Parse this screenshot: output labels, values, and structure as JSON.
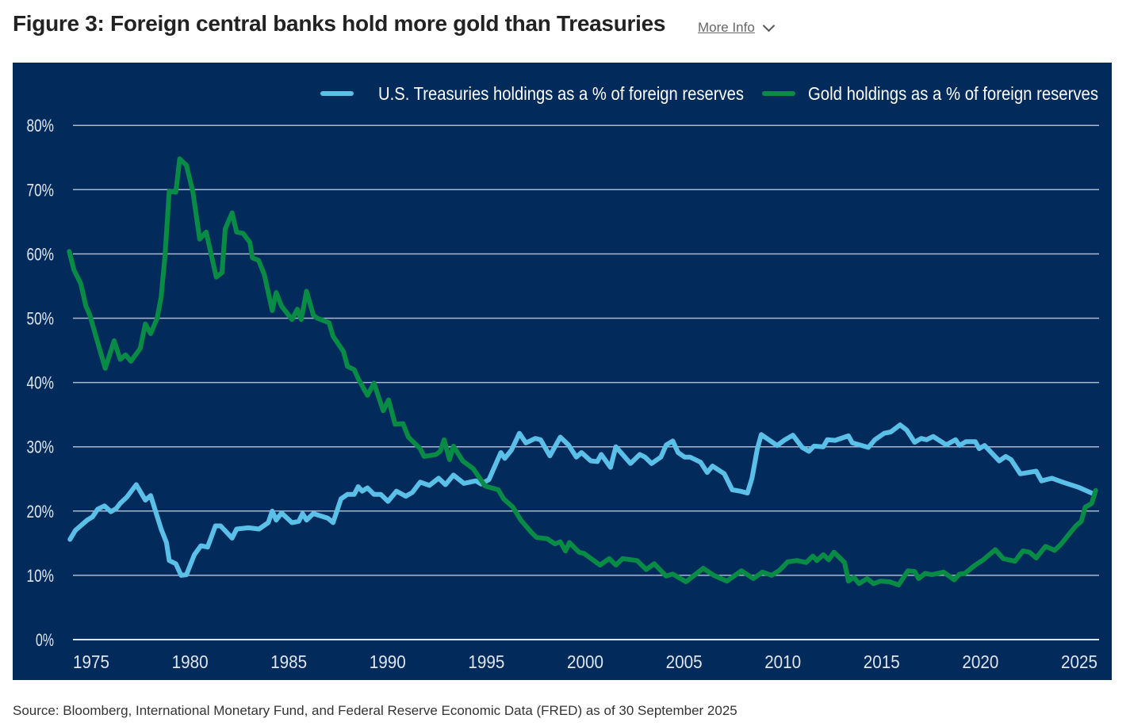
{
  "header": {
    "title": "Figure 3: Foreign central banks hold more gold than Treasuries",
    "more_info": "More Info",
    "chevron_icon": "chevron-down-icon"
  },
  "source": "Source: Bloomberg, International Monetary Fund, and Federal Reserve Economic Data (FRED) as of 30 September 2025",
  "colors": {
    "background": "#022b5c",
    "treasuries": "#5bc0e8",
    "gold": "#078b45",
    "grid": "#a9b8cf"
  },
  "chart_data": {
    "type": "line",
    "title": "",
    "xlabel": "",
    "ylabel": "",
    "xlim": [
      1974,
      2026
    ],
    "ylim": [
      0,
      80
    ],
    "grid": true,
    "legend_position": "top-right",
    "y_ticks": [
      "0%",
      "10%",
      "20%",
      "30%",
      "40%",
      "50%",
      "60%",
      "70%",
      "80%"
    ],
    "y_tick_values": [
      0,
      10,
      20,
      30,
      40,
      50,
      60,
      70,
      80
    ],
    "x_ticks": [
      "1975",
      "1980",
      "1985",
      "1990",
      "1995",
      "2000",
      "2005",
      "2010",
      "2015",
      "2020",
      "2025"
    ],
    "x_tick_values": [
      1975,
      1980,
      1985,
      1990,
      1995,
      2000,
      2005,
      2010,
      2015,
      2020,
      2025
    ],
    "series": [
      {
        "name": "U.S. Treasuries holdings as a % of foreign reserves",
        "color": "#5bc0e8",
        "points": [
          [
            1973.93,
            15.6
          ],
          [
            1974.2,
            17.0
          ],
          [
            1974.8,
            18.6
          ],
          [
            1975.07,
            19.1
          ],
          [
            1975.33,
            20.3
          ],
          [
            1975.67,
            20.8
          ],
          [
            1976.0,
            19.9
          ],
          [
            1976.27,
            20.4
          ],
          [
            1976.47,
            21.2
          ],
          [
            1976.81,
            22.2
          ],
          [
            1977.28,
            24.1
          ],
          [
            1977.74,
            21.7
          ],
          [
            1978.01,
            22.4
          ],
          [
            1978.54,
            17.2
          ],
          [
            1978.81,
            15.1
          ],
          [
            1978.95,
            12.3
          ],
          [
            1979.28,
            11.8
          ],
          [
            1979.55,
            10.0
          ],
          [
            1979.82,
            10.1
          ],
          [
            1980.22,
            13.2
          ],
          [
            1980.55,
            14.6
          ],
          [
            1980.89,
            14.4
          ],
          [
            1981.29,
            17.7
          ],
          [
            1981.55,
            17.7
          ],
          [
            1982.13,
            15.8
          ],
          [
            1982.36,
            17.2
          ],
          [
            1982.96,
            17.4
          ],
          [
            1983.49,
            17.2
          ],
          [
            1983.96,
            18.2
          ],
          [
            1984.16,
            20.0
          ],
          [
            1984.36,
            18.6
          ],
          [
            1984.63,
            19.7
          ],
          [
            1985.16,
            18.2
          ],
          [
            1985.5,
            18.4
          ],
          [
            1985.7,
            19.6
          ],
          [
            1985.9,
            18.6
          ],
          [
            1986.24,
            19.6
          ],
          [
            1986.97,
            18.9
          ],
          [
            1987.24,
            18.2
          ],
          [
            1987.64,
            21.9
          ],
          [
            1987.97,
            22.6
          ],
          [
            1988.31,
            22.6
          ],
          [
            1988.51,
            23.8
          ],
          [
            1988.71,
            23.1
          ],
          [
            1988.98,
            23.6
          ],
          [
            1989.31,
            22.6
          ],
          [
            1989.65,
            22.6
          ],
          [
            1990.02,
            21.5
          ],
          [
            1990.45,
            23.1
          ],
          [
            1990.92,
            22.3
          ],
          [
            1991.25,
            22.9
          ],
          [
            1991.65,
            24.5
          ],
          [
            1992.12,
            24.0
          ],
          [
            1992.58,
            25.1
          ],
          [
            1992.93,
            24.1
          ],
          [
            1993.33,
            25.6
          ],
          [
            1993.86,
            24.3
          ],
          [
            1994.46,
            24.7
          ],
          [
            1994.73,
            24.2
          ],
          [
            1995.13,
            24.9
          ],
          [
            1995.73,
            29.1
          ],
          [
            1995.93,
            28.2
          ],
          [
            1996.27,
            29.5
          ],
          [
            1996.67,
            32.1
          ],
          [
            1997.0,
            30.6
          ],
          [
            1997.47,
            31.3
          ],
          [
            1997.74,
            31.1
          ],
          [
            1998.21,
            28.6
          ],
          [
            1998.74,
            31.5
          ],
          [
            1999.15,
            30.3
          ],
          [
            1999.55,
            28.4
          ],
          [
            1999.81,
            29.1
          ],
          [
            2000.28,
            27.8
          ],
          [
            2000.61,
            27.7
          ],
          [
            2000.81,
            28.8
          ],
          [
            2001.28,
            26.8
          ],
          [
            2001.55,
            30.0
          ],
          [
            2001.89,
            28.8
          ],
          [
            2002.29,
            27.4
          ],
          [
            2002.76,
            28.8
          ],
          [
            2003.02,
            28.4
          ],
          [
            2003.36,
            27.4
          ],
          [
            2003.83,
            28.4
          ],
          [
            2004.1,
            30.3
          ],
          [
            2004.43,
            30.9
          ],
          [
            2004.7,
            29.1
          ],
          [
            2005.03,
            28.4
          ],
          [
            2005.3,
            28.4
          ],
          [
            2005.84,
            27.6
          ],
          [
            2006.17,
            26.0
          ],
          [
            2006.44,
            27.0
          ],
          [
            2007.04,
            25.8
          ],
          [
            2007.44,
            23.3
          ],
          [
            2007.84,
            23.1
          ],
          [
            2008.21,
            22.8
          ],
          [
            2008.44,
            25.1
          ],
          [
            2008.71,
            29.7
          ],
          [
            2008.91,
            31.9
          ],
          [
            2009.71,
            30.2
          ],
          [
            2010.11,
            31.1
          ],
          [
            2010.51,
            31.8
          ],
          [
            2010.98,
            29.9
          ],
          [
            2011.32,
            29.3
          ],
          [
            2011.58,
            30.1
          ],
          [
            2012.05,
            30.0
          ],
          [
            2012.25,
            31.1
          ],
          [
            2012.65,
            31.0
          ],
          [
            2013.32,
            31.7
          ],
          [
            2013.52,
            30.6
          ],
          [
            2014.33,
            29.9
          ],
          [
            2014.66,
            31.1
          ],
          [
            2015.13,
            32.1
          ],
          [
            2015.46,
            32.3
          ],
          [
            2015.93,
            33.4
          ],
          [
            2016.27,
            32.6
          ],
          [
            2016.67,
            30.7
          ],
          [
            2017.0,
            31.3
          ],
          [
            2017.27,
            31.1
          ],
          [
            2017.61,
            31.6
          ],
          [
            2018.27,
            30.3
          ],
          [
            2018.74,
            31.1
          ],
          [
            2018.94,
            30.2
          ],
          [
            2019.27,
            30.8
          ],
          [
            2019.74,
            30.8
          ],
          [
            2019.94,
            29.7
          ],
          [
            2020.21,
            30.2
          ],
          [
            2020.95,
            27.8
          ],
          [
            2021.28,
            28.5
          ],
          [
            2021.55,
            28.0
          ],
          [
            2022.02,
            25.8
          ],
          [
            2022.82,
            26.2
          ],
          [
            2023.09,
            24.7
          ],
          [
            2023.62,
            25.1
          ],
          [
            2024.16,
            24.5
          ],
          [
            2024.96,
            23.7
          ],
          [
            2025.63,
            22.8
          ]
        ]
      },
      {
        "name": "Gold holdings as a % of foreign reserves",
        "color": "#078b45",
        "points": [
          [
            1973.89,
            60.4
          ],
          [
            1974.13,
            57.5
          ],
          [
            1974.47,
            55.4
          ],
          [
            1974.73,
            51.9
          ],
          [
            1974.93,
            50.5
          ],
          [
            1975.2,
            47.6
          ],
          [
            1975.71,
            42.2
          ],
          [
            1976.16,
            46.5
          ],
          [
            1976.47,
            43.6
          ],
          [
            1976.74,
            44.3
          ],
          [
            1977.01,
            43.3
          ],
          [
            1977.48,
            45.3
          ],
          [
            1977.74,
            49.1
          ],
          [
            1978.01,
            47.6
          ],
          [
            1978.34,
            50.0
          ],
          [
            1978.54,
            53.3
          ],
          [
            1978.74,
            59.9
          ],
          [
            1978.95,
            69.8
          ],
          [
            1979.28,
            69.6
          ],
          [
            1979.48,
            74.8
          ],
          [
            1979.82,
            73.8
          ],
          [
            1980.15,
            69.6
          ],
          [
            1980.49,
            62.3
          ],
          [
            1980.82,
            63.4
          ],
          [
            1981.33,
            56.4
          ],
          [
            1981.62,
            57.1
          ],
          [
            1981.78,
            63.9
          ],
          [
            1982.13,
            66.4
          ],
          [
            1982.36,
            63.4
          ],
          [
            1982.69,
            63.2
          ],
          [
            1983.03,
            61.8
          ],
          [
            1983.16,
            59.4
          ],
          [
            1983.47,
            59.0
          ],
          [
            1983.76,
            56.8
          ],
          [
            1984.16,
            51.2
          ],
          [
            1984.36,
            54.0
          ],
          [
            1984.63,
            51.9
          ],
          [
            1985.16,
            49.8
          ],
          [
            1985.43,
            51.4
          ],
          [
            1985.63,
            49.8
          ],
          [
            1985.9,
            54.2
          ],
          [
            1986.24,
            50.5
          ],
          [
            1986.44,
            50.0
          ],
          [
            1987.04,
            49.3
          ],
          [
            1987.24,
            47.2
          ],
          [
            1987.77,
            44.8
          ],
          [
            1987.97,
            42.5
          ],
          [
            1988.31,
            42.0
          ],
          [
            1988.51,
            40.6
          ],
          [
            1988.98,
            38.0
          ],
          [
            1989.31,
            39.9
          ],
          [
            1989.78,
            35.6
          ],
          [
            1990.05,
            37.3
          ],
          [
            1990.38,
            33.5
          ],
          [
            1990.78,
            33.6
          ],
          [
            1991.05,
            31.5
          ],
          [
            1991.65,
            29.7
          ],
          [
            1991.85,
            28.5
          ],
          [
            1992.45,
            28.8
          ],
          [
            1992.66,
            29.3
          ],
          [
            1992.86,
            31.1
          ],
          [
            1993.13,
            28.0
          ],
          [
            1993.33,
            30.1
          ],
          [
            1993.8,
            27.8
          ],
          [
            1994.33,
            26.6
          ],
          [
            1994.93,
            23.9
          ],
          [
            1995.6,
            23.3
          ],
          [
            1995.87,
            21.9
          ],
          [
            1996.34,
            20.6
          ],
          [
            1996.74,
            18.6
          ],
          [
            1997.27,
            16.7
          ],
          [
            1997.54,
            15.9
          ],
          [
            1998.07,
            15.7
          ],
          [
            1998.47,
            14.9
          ],
          [
            1998.74,
            15.2
          ],
          [
            1999.0,
            13.8
          ],
          [
            1999.2,
            15.1
          ],
          [
            1999.68,
            13.6
          ],
          [
            1999.94,
            13.4
          ],
          [
            2000.75,
            11.6
          ],
          [
            2001.21,
            12.6
          ],
          [
            2001.55,
            11.6
          ],
          [
            2001.89,
            12.6
          ],
          [
            2002.62,
            12.3
          ],
          [
            2003.09,
            10.9
          ],
          [
            2003.49,
            11.8
          ],
          [
            2004.09,
            9.9
          ],
          [
            2004.43,
            10.2
          ],
          [
            2005.1,
            9.0
          ],
          [
            2005.97,
            11.1
          ],
          [
            2006.5,
            10.0
          ],
          [
            2007.17,
            9.1
          ],
          [
            2007.9,
            10.7
          ],
          [
            2008.51,
            9.5
          ],
          [
            2008.97,
            10.5
          ],
          [
            2009.44,
            10.0
          ],
          [
            2009.84,
            10.8
          ],
          [
            2010.24,
            12.1
          ],
          [
            2010.71,
            12.3
          ],
          [
            2011.18,
            12.0
          ],
          [
            2011.52,
            13.0
          ],
          [
            2011.72,
            12.3
          ],
          [
            2012.05,
            13.2
          ],
          [
            2012.32,
            12.4
          ],
          [
            2012.59,
            13.6
          ],
          [
            2013.12,
            12.0
          ],
          [
            2013.32,
            9.1
          ],
          [
            2013.59,
            9.7
          ],
          [
            2013.86,
            8.7
          ],
          [
            2014.26,
            9.5
          ],
          [
            2014.59,
            8.7
          ],
          [
            2014.93,
            9.1
          ],
          [
            2015.4,
            9.0
          ],
          [
            2015.86,
            8.5
          ],
          [
            2016.33,
            10.7
          ],
          [
            2016.67,
            10.6
          ],
          [
            2016.87,
            9.5
          ],
          [
            2017.2,
            10.3
          ],
          [
            2017.54,
            10.1
          ],
          [
            2018.14,
            10.5
          ],
          [
            2018.67,
            9.3
          ],
          [
            2018.94,
            10.2
          ],
          [
            2019.21,
            10.3
          ],
          [
            2019.74,
            11.6
          ],
          [
            2020.14,
            12.4
          ],
          [
            2020.75,
            14.0
          ],
          [
            2021.15,
            12.6
          ],
          [
            2021.75,
            12.2
          ],
          [
            2022.15,
            13.8
          ],
          [
            2022.48,
            13.6
          ],
          [
            2022.82,
            12.7
          ],
          [
            2023.29,
            14.5
          ],
          [
            2023.76,
            13.9
          ],
          [
            2024.09,
            14.9
          ],
          [
            2024.43,
            16.2
          ],
          [
            2024.83,
            17.7
          ],
          [
            2025.1,
            18.4
          ],
          [
            2025.3,
            20.6
          ],
          [
            2025.63,
            21.2
          ],
          [
            2025.83,
            23.2
          ]
        ]
      }
    ]
  }
}
